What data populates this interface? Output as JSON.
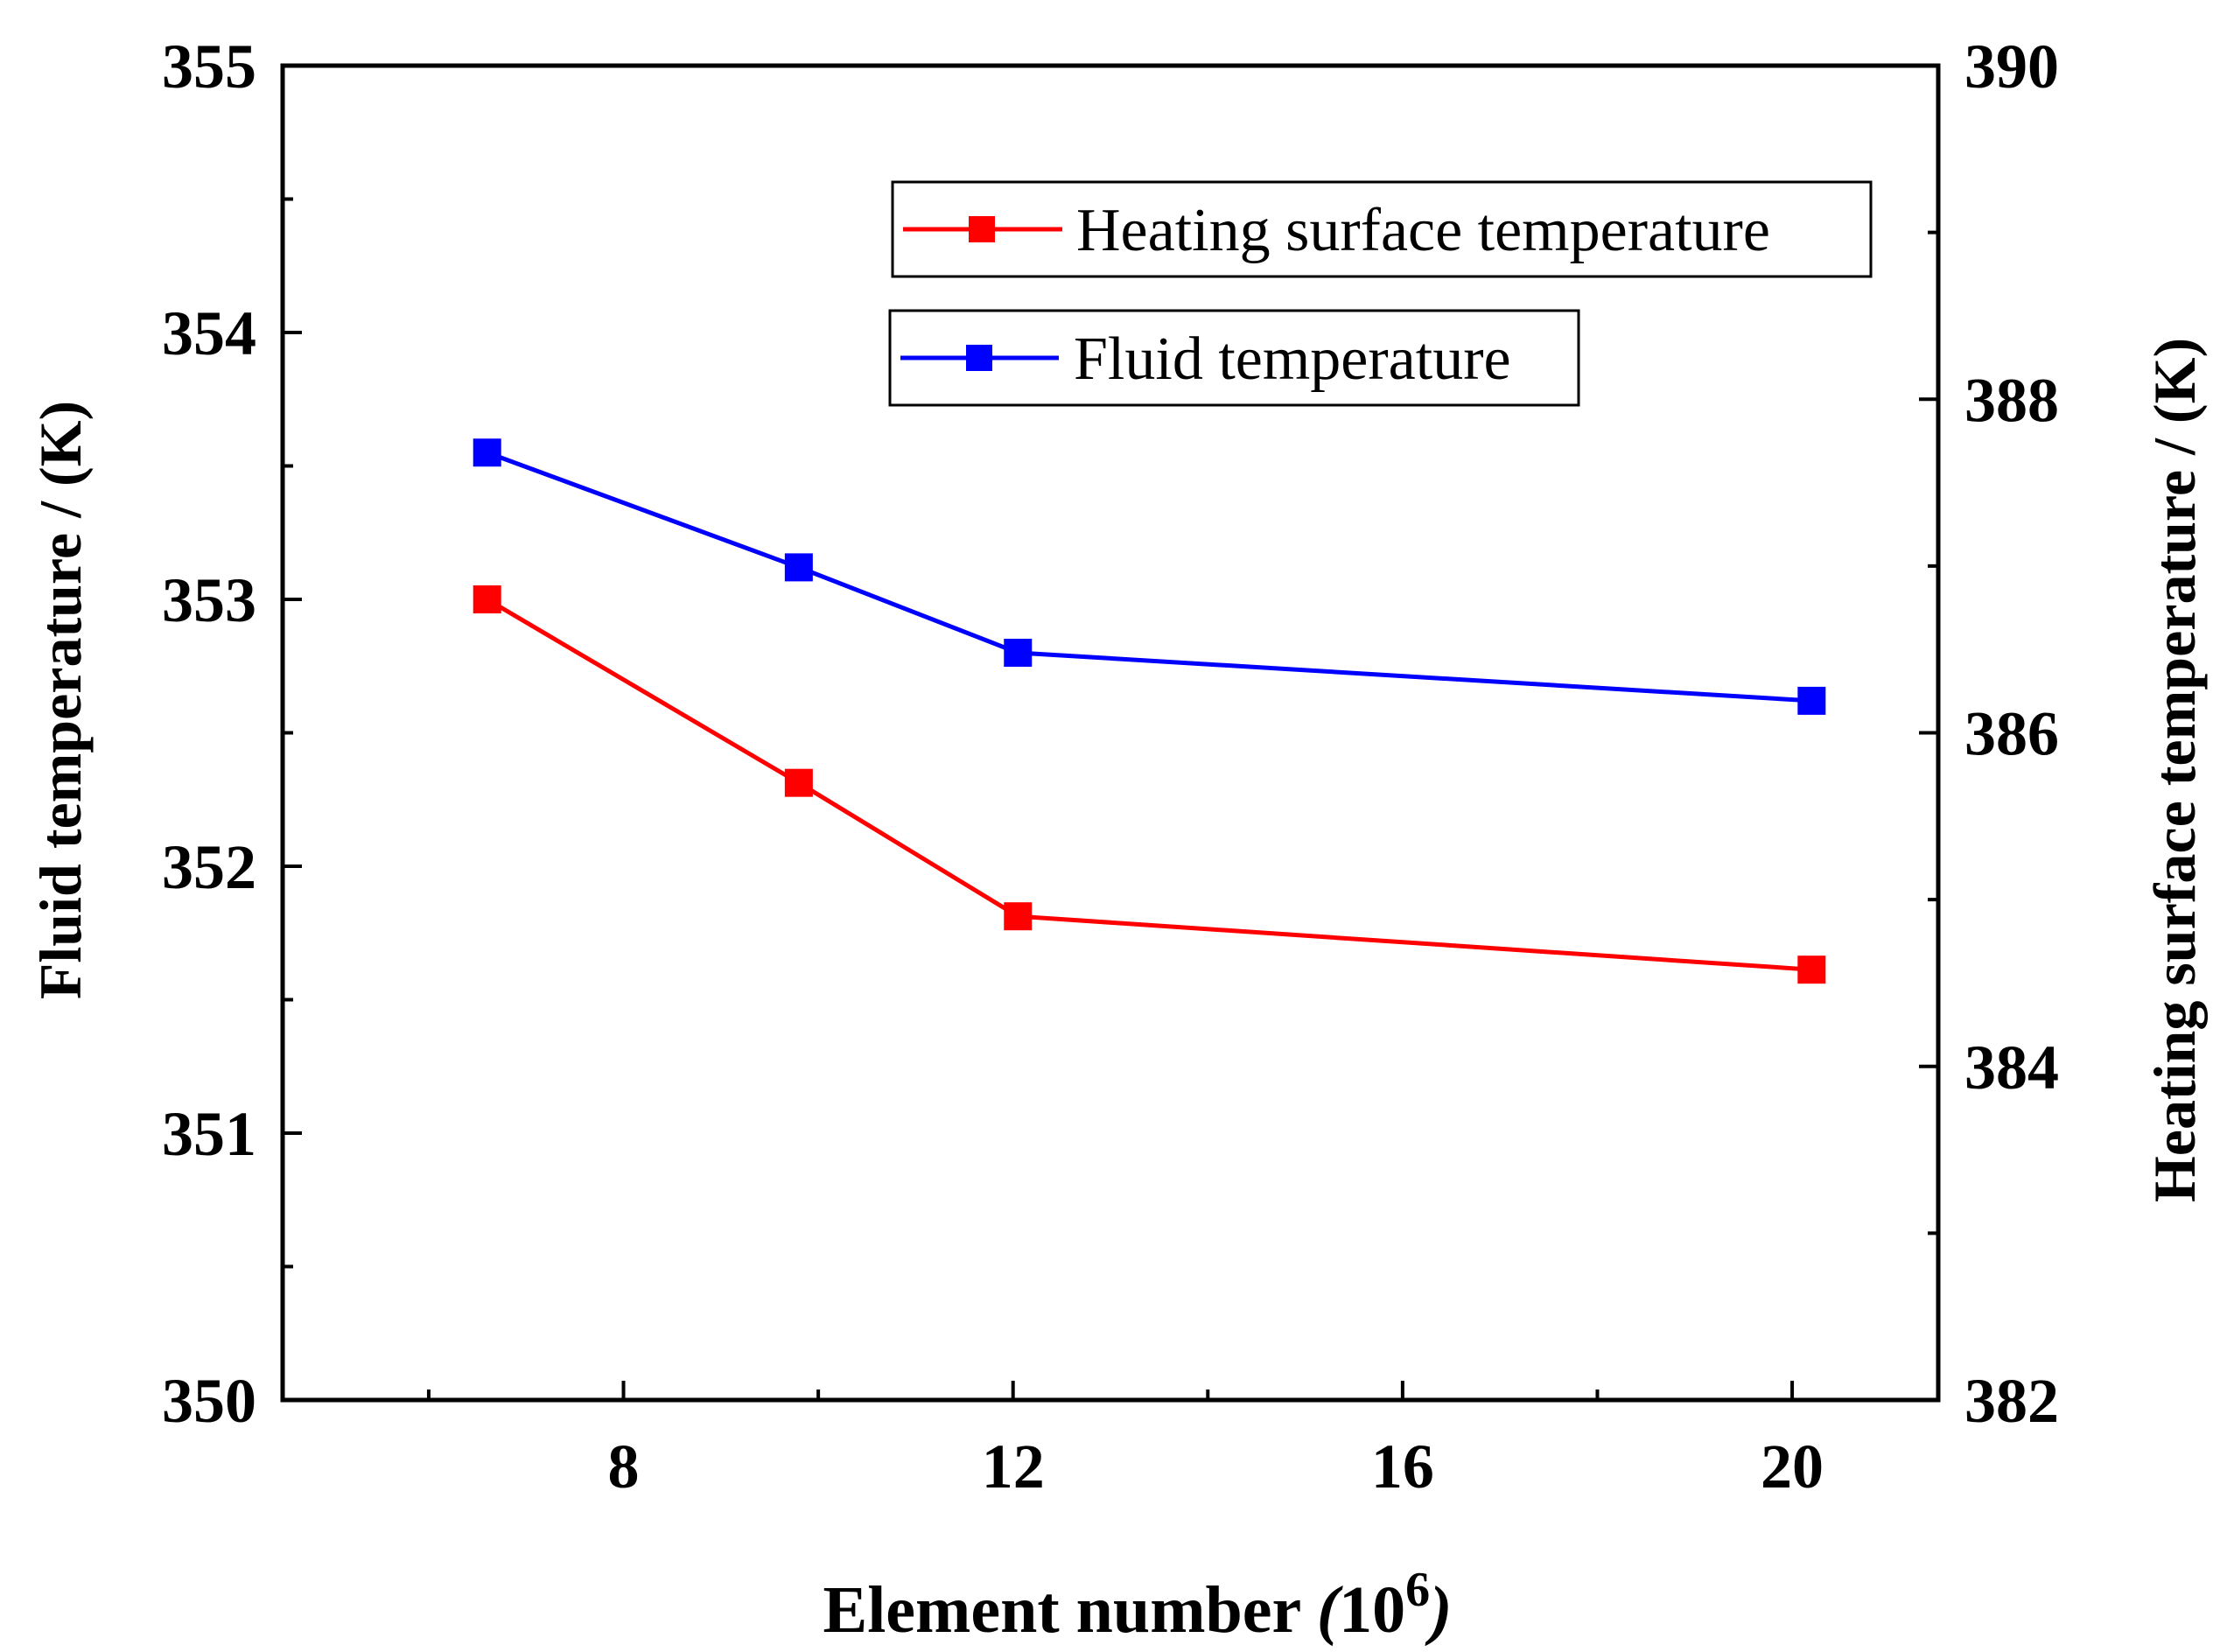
{
  "chart_data": {
    "type": "line",
    "xlabel_main": "Element number ",
    "xlabel_open": "(",
    "xlabel_base": "10",
    "xlabel_exp": "6",
    "xlabel_close": ")",
    "ylabel_left": "Fluid temperature / (K)",
    "ylabel_right": "Heating surface temperature / (K)",
    "xlim": [
      4.5,
      21.5
    ],
    "x_ticks": [
      8,
      12,
      16,
      20
    ],
    "x_tick_labels": [
      "8",
      "12",
      "16",
      "20"
    ],
    "x_minor_ticks": [
      6,
      10,
      14,
      18
    ],
    "ylim_left": [
      350,
      355
    ],
    "y_left_ticks": [
      350,
      351,
      352,
      353,
      354,
      355
    ],
    "y_left_tick_labels": [
      "350",
      "351",
      "352",
      "353",
      "354",
      "355"
    ],
    "ylim_right": [
      382,
      390
    ],
    "y_right_ticks": [
      382,
      384,
      386,
      388,
      390
    ],
    "y_right_tick_labels": [
      "382",
      "384",
      "386",
      "388",
      "390"
    ],
    "series": [
      {
        "name": "Heating surface temperature",
        "axis": "right",
        "color": "#ff0000",
        "x": [
          6.6,
          9.8,
          12.05,
          20.2
        ],
        "values": [
          386.8,
          385.7,
          384.9,
          384.58
        ]
      },
      {
        "name": "Fluid temperature",
        "axis": "left",
        "color": "#0000ff",
        "x": [
          6.6,
          9.8,
          12.05,
          20.2
        ],
        "values": [
          353.55,
          353.12,
          352.8,
          352.62
        ]
      }
    ],
    "legend_position": "top-right"
  }
}
